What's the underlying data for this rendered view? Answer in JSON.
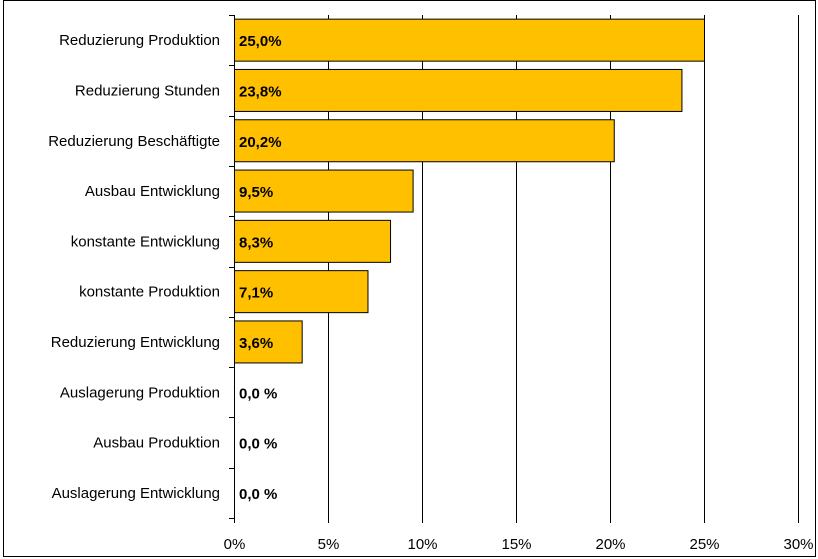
{
  "chart_data": {
    "type": "bar",
    "orientation": "horizontal",
    "categories": [
      "Reduzierung Produktion",
      "Reduzierung Stunden",
      "Reduzierung Beschäftigte",
      "Ausbau Entwicklung",
      "konstante Entwicklung",
      "konstante Produktion",
      "Reduzierung Entwicklung",
      "Auslagerung Produktion",
      "Ausbau Produktion",
      "Auslagerung Entwicklung"
    ],
    "values": [
      25.0,
      23.8,
      20.2,
      9.5,
      8.3,
      7.1,
      3.6,
      0.0,
      0.0,
      0.0
    ],
    "data_labels": [
      "25,0%",
      "23,8%",
      "20,2%",
      "9,5%",
      "8,3%",
      "7,1%",
      "3,6%",
      "0,0 %",
      "0,0 %",
      "0,0 %"
    ],
    "x_ticks": [
      "0%",
      "5%",
      "10%",
      "15%",
      "20%",
      "25%",
      "30%"
    ],
    "xlim": [
      0,
      30
    ],
    "grid": "vertical",
    "bar_color": "#FFC000",
    "bar_border_color": "#000000",
    "title": "",
    "xlabel": "",
    "ylabel": ""
  }
}
